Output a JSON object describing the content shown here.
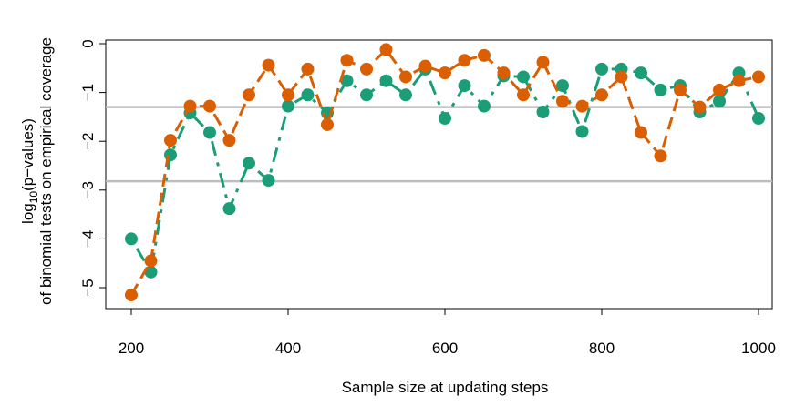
{
  "chart_data": {
    "type": "line",
    "xlabel": "Sample size at updating steps",
    "ylabel_line1": "log",
    "ylabel_sub": "10",
    "ylabel_line1_rest": "(p−values)",
    "ylabel_line2": "of binomial tests on empirical coverage",
    "xlim": [
      200,
      1000
    ],
    "ylim": [
      -5.2,
      0
    ],
    "x_ticks": [
      200,
      400,
      600,
      800,
      1000
    ],
    "y_ticks": [
      0,
      -1,
      -2,
      -3,
      -4,
      -5
    ],
    "x_tick_labels": [
      "200",
      "400",
      "600",
      "800",
      "1000"
    ],
    "y_tick_labels": [
      "0",
      "−1",
      "−2",
      "−3",
      "−4",
      "−5"
    ],
    "reference_lines": [
      -1.3,
      -2.82
    ],
    "reference_line_color": "#bebebe",
    "x": [
      200,
      225,
      250,
      275,
      300,
      325,
      350,
      375,
      400,
      425,
      450,
      475,
      500,
      525,
      550,
      575,
      600,
      625,
      650,
      675,
      700,
      725,
      750,
      775,
      800,
      825,
      850,
      875,
      900,
      925,
      950,
      975,
      1000
    ],
    "series": [
      {
        "color": "#1b9e77",
        "line_style": "dash-dot",
        "values": [
          -4.0,
          -4.68,
          -2.28,
          -1.42,
          -1.82,
          -3.38,
          -2.45,
          -2.8,
          -1.28,
          -1.05,
          -1.42,
          -0.76,
          -1.05,
          -0.76,
          -1.05,
          -0.52,
          -1.53,
          -0.86,
          -1.28,
          -0.66,
          -0.68,
          -1.4,
          -0.86,
          -1.8,
          -0.52,
          -0.52,
          -0.6,
          -0.95,
          -0.86,
          -1.4,
          -1.18,
          -0.6,
          -1.53
        ]
      },
      {
        "color": "#d95f02",
        "line_style": "dashed",
        "values": [
          -5.15,
          -4.45,
          -1.98,
          -1.28,
          -1.28,
          -1.98,
          -1.05,
          -0.44,
          -1.05,
          -0.52,
          -1.66,
          -0.34,
          -0.52,
          -0.12,
          -0.68,
          -0.46,
          -0.6,
          -0.34,
          -0.24,
          -0.6,
          -1.05,
          -0.38,
          -1.18,
          -1.28,
          -1.05,
          -0.68,
          -1.82,
          -2.3,
          -0.95,
          -1.3,
          -0.95,
          -0.76,
          -0.68
        ]
      }
    ]
  }
}
